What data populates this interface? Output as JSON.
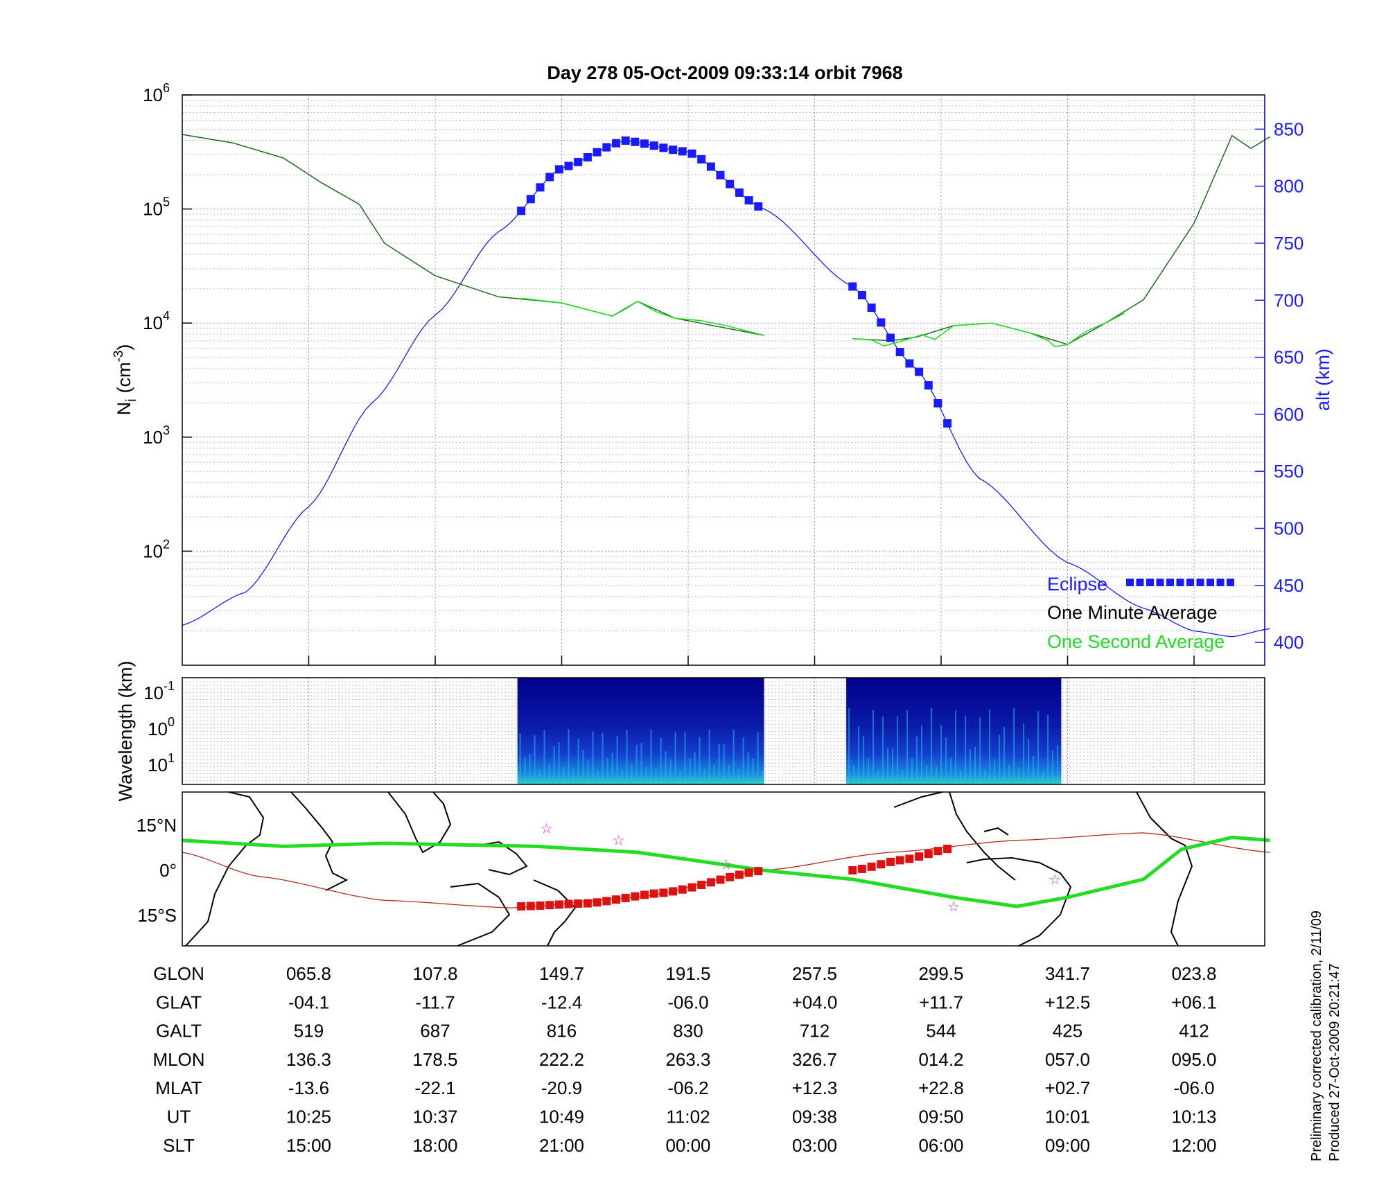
{
  "chart_data": [
    {
      "type": "line",
      "title": "Day 278  05-Oct-2009 09:33:14   orbit 7968",
      "ylabel": "N_i (cm^-3)",
      "ylabel_base": "N",
      "ylabel_sub": "i",
      "ylabel_unit_open": "(cm",
      "ylabel_unit_sup": "-3",
      "ylabel_unit_close": ")",
      "yscale": "log",
      "ylim": [
        10,
        1000000
      ],
      "yticks": [
        {
          "value": 100,
          "base": "10",
          "exp": "2"
        },
        {
          "value": 1000,
          "base": "10",
          "exp": "3"
        },
        {
          "value": 10000,
          "base": "10",
          "exp": "4"
        },
        {
          "value": 100000,
          "base": "10",
          "exp": "5"
        },
        {
          "value": 1000000,
          "base": "10",
          "exp": "6"
        }
      ],
      "y2label": "alt (km)",
      "y2lim": [
        380,
        880
      ],
      "y2ticks": [
        "400",
        "450",
        "500",
        "550",
        "600",
        "650",
        "700",
        "750",
        "800",
        "850"
      ],
      "x_index_range": [
        0,
        8.6
      ],
      "grid": true,
      "colors": {
        "alt": "#1a1aff",
        "minute": "#1d6b1d",
        "second": "#22dd22",
        "eclipse": "#1a1aff"
      },
      "legend": {
        "placement": "bottom-right",
        "items": [
          {
            "name": "Eclipse",
            "color": "#1a1aff"
          },
          {
            "name": "One Minute Average",
            "color": "#000000"
          },
          {
            "name": "One Second Average",
            "color": "#22dd22"
          }
        ]
      },
      "series": [
        {
          "name": "alt (km)",
          "axis": "right",
          "points": [
            [
              0,
              415
            ],
            [
              0.5,
              444
            ],
            [
              1,
              519
            ],
            [
              1.5,
              610
            ],
            [
              2,
              687
            ],
            [
              2.5,
              760
            ],
            [
              3,
              816
            ],
            [
              3.5,
              840
            ],
            [
              4,
              830
            ],
            [
              4.6,
              780
            ],
            [
              5.3,
              712
            ],
            [
              5.8,
              640
            ],
            [
              6.3,
              544
            ],
            [
              7,
              470
            ],
            [
              7.6,
              430
            ],
            [
              8,
              410
            ],
            [
              8.3,
              405
            ],
            [
              8.6,
              412
            ]
          ],
          "eclipse_ranges": [
            [
              2.68,
              4.6
            ],
            [
              5.3,
              6.1
            ]
          ]
        },
        {
          "name": "One Minute Average",
          "points": [
            [
              0,
              450000
            ],
            [
              0.4,
              380000
            ],
            [
              0.8,
              280000
            ],
            [
              1.1,
              170000
            ],
            [
              1.4,
              110000
            ],
            [
              1.6,
              50000
            ],
            [
              2,
              26000
            ],
            [
              2.5,
              17000
            ],
            [
              3,
              15000
            ],
            [
              3.4,
              11500
            ],
            [
              3.6,
              15500
            ],
            [
              3.9,
              11000
            ],
            [
              4.6,
              7800
            ],
            [
              5.3,
              7300
            ],
            [
              5.6,
              7000
            ],
            [
              5.8,
              7500
            ],
            [
              6.1,
              9500
            ],
            [
              6.4,
              10000
            ],
            [
              6.7,
              8200
            ],
            [
              7.0,
              6500
            ],
            [
              7.3,
              10000
            ],
            [
              7.6,
              16000
            ],
            [
              8.0,
              75000
            ],
            [
              8.3,
              440000
            ],
            [
              8.45,
              340000
            ],
            [
              8.6,
              430000
            ]
          ],
          "gaps": [
            [
              4.6,
              5.3
            ]
          ]
        },
        {
          "name": "One Second Average",
          "segments": [
            [
              [
                2.68,
                16500
              ],
              [
                3.0,
                15000
              ],
              [
                3.4,
                11500
              ],
              [
                3.5,
                13200
              ],
              [
                3.6,
                15500
              ],
              [
                3.75,
                12500
              ],
              [
                3.9,
                11000
              ],
              [
                4.1,
                10500
              ],
              [
                4.3,
                9500
              ],
              [
                4.6,
                7800
              ]
            ],
            [
              [
                5.3,
                7300
              ],
              [
                5.45,
                7100
              ],
              [
                5.55,
                6300
              ],
              [
                5.7,
                7000
              ],
              [
                5.85,
                7900
              ],
              [
                5.95,
                7200
              ],
              [
                6.1,
                9500
              ],
              [
                6.4,
                10000
              ],
              [
                6.7,
                8200
              ],
              [
                6.85,
                7000
              ],
              [
                6.9,
                6200
              ],
              [
                7.0,
                6500
              ],
              [
                7.15,
                8500
              ],
              [
                7.3,
                10000
              ],
              [
                7.45,
                12200
              ]
            ]
          ]
        }
      ]
    },
    {
      "type": "heatmap",
      "ylabel": "Wavelength (km)",
      "yticks": [
        {
          "base": "10",
          "exp": "-1"
        },
        {
          "base": "10",
          "exp": "0"
        },
        {
          "base": "10",
          "exp": "1"
        }
      ],
      "blocks": [
        [
          2.65,
          4.6
        ],
        [
          5.25,
          6.95
        ]
      ],
      "grid": true
    },
    {
      "type": "scatter",
      "map": true,
      "yticks": [
        "15°N",
        "0°",
        "15°S"
      ],
      "ylim": [
        -25,
        25
      ],
      "colors": {
        "ground_track": "#22dd22",
        "eclipse_track": "#e01010",
        "equator": "#b03020",
        "stars": "#cc33cc",
        "coast": "#000000"
      },
      "ground_track": [
        [
          0,
          10
        ],
        [
          0.8,
          8
        ],
        [
          1.6,
          9
        ],
        [
          2.8,
          8
        ],
        [
          3.6,
          6
        ],
        [
          4.6,
          0
        ],
        [
          5.3,
          -3
        ],
        [
          6.1,
          -9
        ],
        [
          6.6,
          -12
        ],
        [
          7.0,
          -9
        ],
        [
          7.6,
          -3
        ],
        [
          7.9,
          7
        ],
        [
          8.3,
          11
        ],
        [
          8.6,
          10
        ]
      ],
      "eclipse_track": [
        [
          [
            2.68,
            -12
          ],
          [
            3.2,
            -11
          ],
          [
            3.8,
            -7.5
          ],
          [
            4.6,
            0
          ]
        ],
        [
          [
            5.3,
            0
          ],
          [
            5.7,
            3.5
          ],
          [
            6.1,
            7.5
          ]
        ]
      ],
      "equator_curve": [
        [
          0,
          6
        ],
        [
          0.6,
          -2
        ],
        [
          1.6,
          -10
        ],
        [
          2.6,
          -12.5
        ],
        [
          3.6,
          -9
        ],
        [
          4.6,
          0
        ],
        [
          5.6,
          6
        ],
        [
          6.6,
          10
        ],
        [
          7.6,
          12.5
        ],
        [
          8.6,
          6
        ]
      ],
      "stars": [
        [
          2.88,
          14
        ],
        [
          3.45,
          10
        ],
        [
          4.3,
          2
        ],
        [
          6.1,
          -12
        ],
        [
          6.9,
          -3
        ]
      ]
    }
  ],
  "table": {
    "row_labels": [
      "GLON",
      "GLAT",
      "GALT",
      "MLON",
      "MLAT",
      "UT",
      "SLT"
    ],
    "columns": [
      [
        "065.8",
        "-04.1",
        "519",
        "136.3",
        "-13.6",
        "10:25",
        "15:00"
      ],
      [
        "107.8",
        "-11.7",
        "687",
        "178.5",
        "-22.1",
        "10:37",
        "18:00"
      ],
      [
        "149.7",
        "-12.4",
        "816",
        "222.2",
        "-20.9",
        "10:49",
        "21:00"
      ],
      [
        "191.5",
        "-06.0",
        "830",
        "263.3",
        "-06.2",
        "11:02",
        "00:00"
      ],
      [
        "257.5",
        "+04.0",
        "712",
        "326.7",
        "+12.3",
        "09:38",
        "03:00"
      ],
      [
        "299.5",
        "+11.7",
        "544",
        "014.2",
        "+22.8",
        "09:50",
        "06:00"
      ],
      [
        "341.7",
        "+12.5",
        "425",
        "057.0",
        "+02.7",
        "10:01",
        "09:00"
      ],
      [
        "023.8",
        "+06.1",
        "412",
        "095.0",
        "-06.0",
        "10:13",
        "12:00"
      ]
    ]
  },
  "notes": {
    "line1": "Preliminary corrected calibration, 2/11/09",
    "line2": "Produced 27-Oct-2009 20:21:47"
  }
}
